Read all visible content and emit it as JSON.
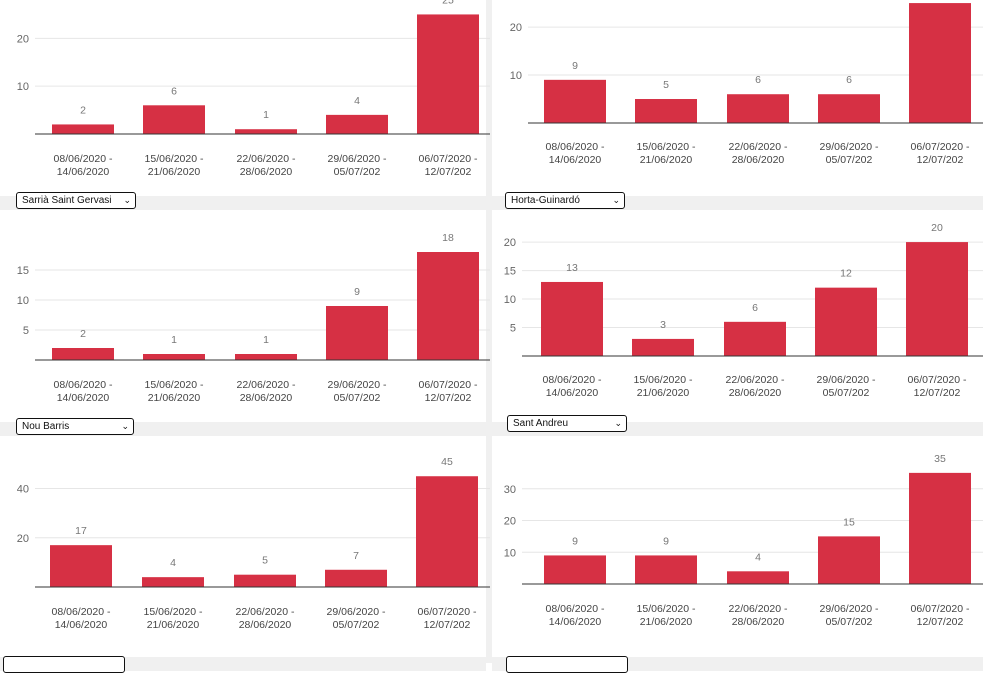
{
  "colors": {
    "bar": "#d63044",
    "band": "#f0f0f0",
    "grid": "#e6e6e6",
    "axis": "#333333"
  },
  "chart_data": [
    {
      "type": "bar",
      "categories": [
        "08/06/2020 - 14/06/2020",
        "15/06/2020 - 21/06/2020",
        "22/06/2020 - 28/06/2020",
        "29/06/2020 - 05/07/202",
        "06/07/2020 - 12/07/202"
      ],
      "values": [
        2,
        6,
        1,
        4,
        25
      ],
      "yticks": [
        10,
        20
      ],
      "ylim": [
        0,
        25.3
      ]
    },
    {
      "type": "bar",
      "categories": [
        "08/06/2020 - 14/06/2020",
        "15/06/2020 - 21/06/2020",
        "22/06/2020 - 28/06/2020",
        "29/06/2020 - 05/07/202",
        "06/07/2020 - 12/07/202"
      ],
      "values": [
        9,
        5,
        6,
        6,
        25
      ],
      "yticks": [
        10,
        20
      ],
      "ylim": [
        0,
        24.6
      ]
    },
    {
      "type": "bar",
      "categories": [
        "08/06/2020 - 14/06/2020",
        "15/06/2020 - 21/06/2020",
        "22/06/2020 - 28/06/2020",
        "29/06/2020 - 05/07/202",
        "06/07/2020 - 12/07/202"
      ],
      "values": [
        2,
        1,
        1,
        9,
        18
      ],
      "yticks": [
        5,
        10,
        15
      ],
      "ylim": [
        0,
        21
      ]
    },
    {
      "type": "bar",
      "categories": [
        "08/06/2020 - 14/06/2020",
        "15/06/2020 - 21/06/2020",
        "22/06/2020 - 28/06/2020",
        "29/06/2020 - 05/07/202",
        "06/07/2020 - 12/07/202"
      ],
      "values": [
        13,
        3,
        6,
        12,
        20
      ],
      "yticks": [
        5,
        10,
        15,
        20
      ],
      "ylim": [
        0,
        23
      ]
    },
    {
      "type": "bar",
      "categories": [
        "08/06/2020 - 14/06/2020",
        "15/06/2020 - 21/06/2020",
        "22/06/2020 - 28/06/2020",
        "29/06/2020 - 05/07/202",
        "06/07/2020 - 12/07/202"
      ],
      "values": [
        17,
        4,
        5,
        7,
        45
      ],
      "yticks": [
        20,
        40
      ],
      "ylim": [
        0,
        52
      ]
    },
    {
      "type": "bar",
      "categories": [
        "08/06/2020 - 14/06/2020",
        "15/06/2020 - 21/06/2020",
        "22/06/2020 - 28/06/2020",
        "29/06/2020 - 05/07/202",
        "06/07/2020 - 12/07/202"
      ],
      "values": [
        9,
        9,
        4,
        15,
        35
      ],
      "yticks": [
        10,
        20,
        30
      ],
      "ylim": [
        0,
        40
      ]
    }
  ],
  "selectors": [
    {
      "value": "Sarrià Saint Gervasi"
    },
    {
      "value": "Horta-Guinardó"
    },
    {
      "value": "Nou Barris"
    },
    {
      "value": "Sant Andreu"
    },
    {
      "value": ""
    },
    {
      "value": ""
    }
  ]
}
